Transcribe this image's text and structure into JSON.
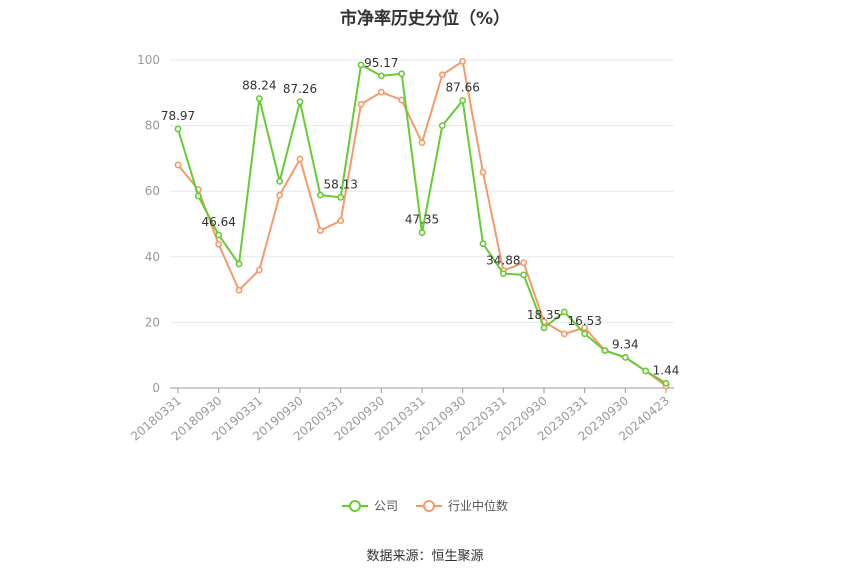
{
  "title": "市净率历史分位（%）",
  "source": "数据来源：恒生聚源",
  "colors": {
    "company": "#66cc33",
    "industry": "#f59a6a",
    "grid": "#e6e8ee",
    "axis": "#999999",
    "label": "#333333"
  },
  "chart_data": {
    "type": "line",
    "ylim": [
      0,
      100
    ],
    "yticks": [
      0,
      20,
      40,
      60,
      80,
      100
    ],
    "xtick_labels": [
      "20180331",
      "20180930",
      "20190331",
      "20190930",
      "20200331",
      "20200930",
      "20210331",
      "20210930",
      "20220331",
      "20220930",
      "20230331",
      "20230930",
      "20240423"
    ],
    "series": [
      {
        "name": "公司",
        "values": [
          78.97,
          58.5,
          46.64,
          37.8,
          88.24,
          63.0,
          87.26,
          58.8,
          58.13,
          98.5,
          95.17,
          95.8,
          47.35,
          80.0,
          87.66,
          44.0,
          34.88,
          34.5,
          18.35,
          23.2,
          16.53,
          11.4,
          9.34,
          5.2,
          1.44
        ],
        "labels": {
          "0": "78.97",
          "2": "46.64",
          "4": "88.24",
          "6": "87.26",
          "8": "58.13",
          "10": "95.17",
          "12": "47.35",
          "14": "87.66",
          "16": "34.88",
          "18": "18.35",
          "20": "16.53",
          "22": "9.34",
          "24": "1.44"
        }
      },
      {
        "name": "行业中位数",
        "values": [
          68.0,
          60.5,
          43.8,
          29.8,
          36.0,
          58.8,
          69.8,
          48.0,
          51.0,
          86.5,
          90.2,
          87.8,
          74.8,
          95.5,
          99.6,
          65.8,
          35.8,
          38.2,
          20.2,
          16.5,
          18.4,
          11.4,
          9.34,
          5.2,
          0.6
        ]
      }
    ]
  }
}
